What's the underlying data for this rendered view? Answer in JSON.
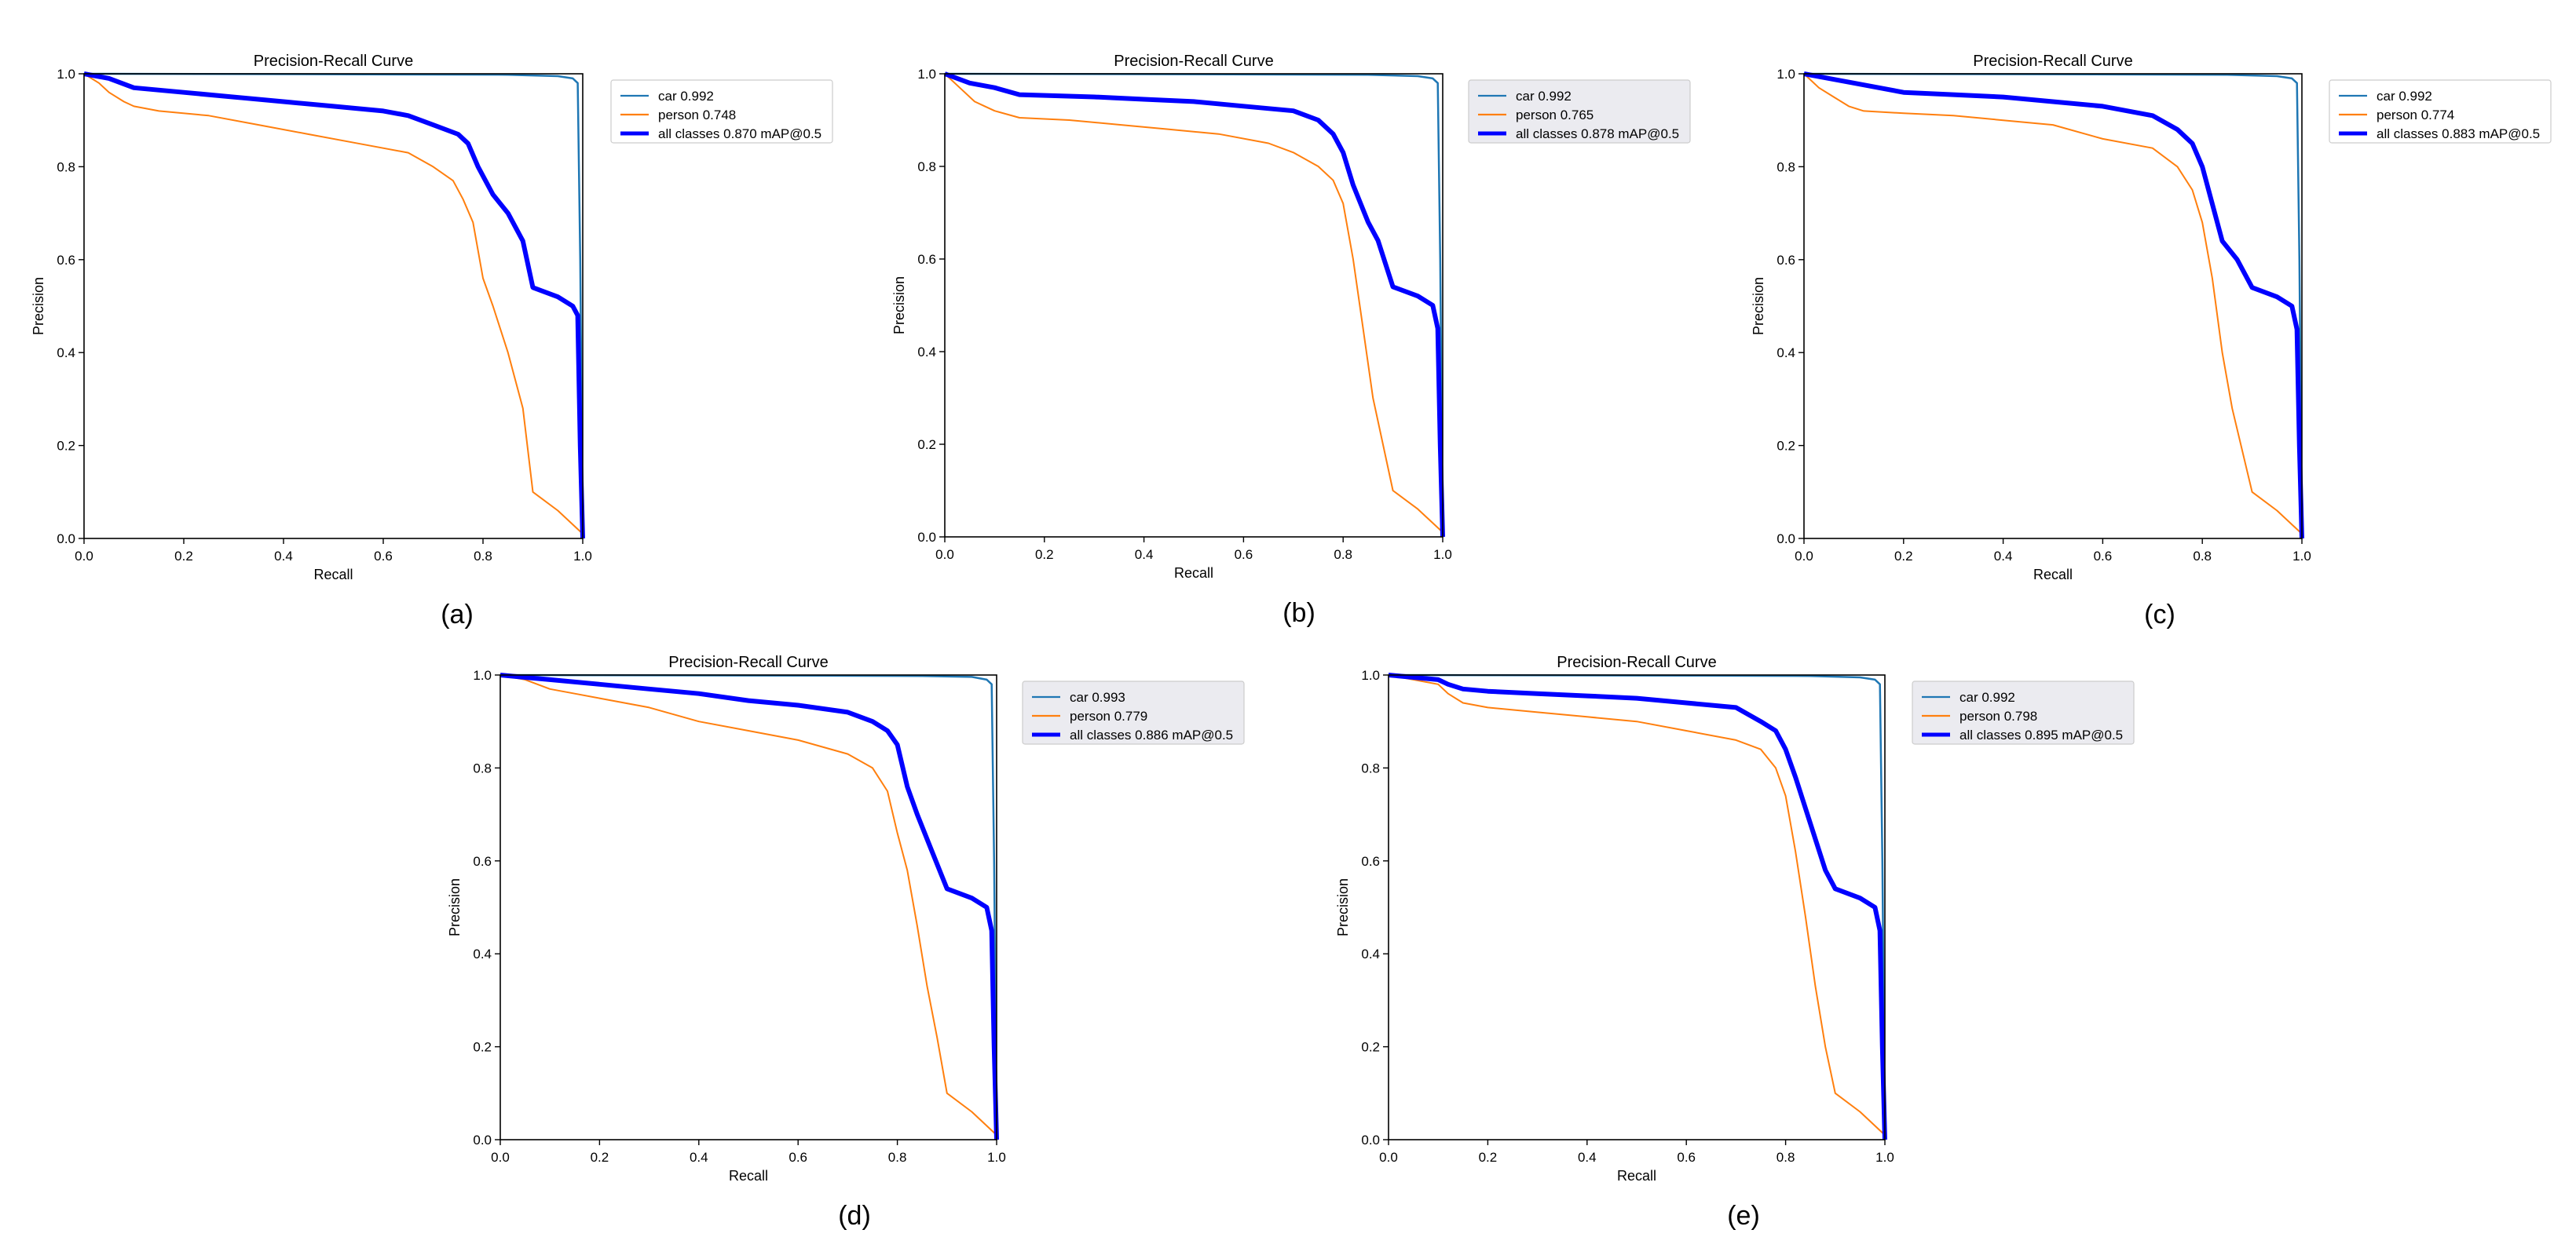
{
  "colors": {
    "car": "#1f77b4",
    "person": "#ff7f0e",
    "all": "#0000ff",
    "legend_bg_shaded": "#ebebf0",
    "legend_border": "#cccccc",
    "axis": "#000000"
  },
  "axis_tick_labels": [
    "0.0",
    "0.2",
    "0.4",
    "0.6",
    "0.8",
    "1.0"
  ],
  "chart_data": [
    {
      "type": "line",
      "panel_label": "(a)",
      "title": "Precision-Recall Curve",
      "xlabel": "Recall",
      "ylabel": "Precision",
      "xlim": [
        0,
        1
      ],
      "ylim": [
        0,
        1
      ],
      "legend_shaded": false,
      "series": [
        {
          "key": "car",
          "name": "car 0.992",
          "x": [
            0,
            0.5,
            0.85,
            0.95,
            0.98,
            0.99,
            0.995,
            1.0
          ],
          "y": [
            1.0,
            0.999,
            0.998,
            0.995,
            0.99,
            0.98,
            0.6,
            0.0
          ]
        },
        {
          "key": "person",
          "name": "person 0.748",
          "x": [
            0,
            0.03,
            0.05,
            0.08,
            0.1,
            0.15,
            0.25,
            0.35,
            0.45,
            0.55,
            0.65,
            0.7,
            0.74,
            0.76,
            0.78,
            0.8,
            0.82,
            0.85,
            0.88,
            0.9,
            0.95,
            1.0
          ],
          "y": [
            1.0,
            0.98,
            0.96,
            0.94,
            0.93,
            0.92,
            0.91,
            0.89,
            0.87,
            0.85,
            0.83,
            0.8,
            0.77,
            0.73,
            0.68,
            0.56,
            0.5,
            0.4,
            0.28,
            0.1,
            0.06,
            0.01
          ]
        },
        {
          "key": "all",
          "name": "all classes 0.870 mAP@0.5",
          "x": [
            0,
            0.05,
            0.1,
            0.2,
            0.3,
            0.4,
            0.5,
            0.6,
            0.65,
            0.7,
            0.75,
            0.77,
            0.79,
            0.82,
            0.85,
            0.88,
            0.9,
            0.95,
            0.98,
            0.99,
            0.995,
            1.0
          ],
          "y": [
            1.0,
            0.99,
            0.97,
            0.96,
            0.95,
            0.94,
            0.93,
            0.92,
            0.91,
            0.89,
            0.87,
            0.85,
            0.8,
            0.74,
            0.7,
            0.64,
            0.54,
            0.52,
            0.5,
            0.48,
            0.2,
            0.0
          ]
        }
      ]
    },
    {
      "type": "line",
      "panel_label": "(b)",
      "title": "Precision-Recall Curve",
      "xlabel": "Recall",
      "ylabel": "Precision",
      "xlim": [
        0,
        1
      ],
      "ylim": [
        0,
        1
      ],
      "legend_shaded": true,
      "series": [
        {
          "key": "car",
          "name": "car 0.992",
          "x": [
            0,
            0.5,
            0.85,
            0.95,
            0.98,
            0.99,
            0.995,
            1.0
          ],
          "y": [
            1.0,
            0.999,
            0.998,
            0.995,
            0.99,
            0.98,
            0.6,
            0.0
          ]
        },
        {
          "key": "person",
          "name": "person 0.765",
          "x": [
            0,
            0.03,
            0.06,
            0.08,
            0.1,
            0.15,
            0.25,
            0.35,
            0.45,
            0.55,
            0.65,
            0.7,
            0.75,
            0.78,
            0.8,
            0.82,
            0.84,
            0.86,
            0.9,
            0.95,
            1.0
          ],
          "y": [
            1.0,
            0.97,
            0.94,
            0.93,
            0.92,
            0.905,
            0.9,
            0.89,
            0.88,
            0.87,
            0.85,
            0.83,
            0.8,
            0.77,
            0.72,
            0.6,
            0.45,
            0.3,
            0.1,
            0.06,
            0.01
          ]
        },
        {
          "key": "all",
          "name": "all classes 0.878 mAP@0.5",
          "x": [
            0,
            0.05,
            0.1,
            0.15,
            0.3,
            0.4,
            0.5,
            0.6,
            0.7,
            0.75,
            0.78,
            0.8,
            0.82,
            0.85,
            0.87,
            0.9,
            0.95,
            0.98,
            0.99,
            0.995,
            1.0
          ],
          "y": [
            1.0,
            0.98,
            0.97,
            0.955,
            0.95,
            0.945,
            0.94,
            0.93,
            0.92,
            0.9,
            0.87,
            0.83,
            0.76,
            0.68,
            0.64,
            0.54,
            0.52,
            0.5,
            0.45,
            0.2,
            0.0
          ]
        }
      ]
    },
    {
      "type": "line",
      "panel_label": "(c)",
      "title": "Precision-Recall Curve",
      "xlabel": "Recall",
      "ylabel": "Precision",
      "xlim": [
        0,
        1
      ],
      "ylim": [
        0,
        1
      ],
      "legend_shaded": false,
      "series": [
        {
          "key": "car",
          "name": "car 0.992",
          "x": [
            0,
            0.5,
            0.85,
            0.95,
            0.98,
            0.99,
            0.995,
            1.0
          ],
          "y": [
            1.0,
            0.999,
            0.998,
            0.995,
            0.99,
            0.98,
            0.6,
            0.0
          ]
        },
        {
          "key": "person",
          "name": "person 0.774",
          "x": [
            0,
            0.03,
            0.06,
            0.09,
            0.12,
            0.2,
            0.3,
            0.4,
            0.5,
            0.6,
            0.7,
            0.75,
            0.78,
            0.8,
            0.82,
            0.84,
            0.86,
            0.9,
            0.95,
            1.0
          ],
          "y": [
            1.0,
            0.97,
            0.95,
            0.93,
            0.92,
            0.915,
            0.91,
            0.9,
            0.89,
            0.86,
            0.84,
            0.8,
            0.75,
            0.68,
            0.56,
            0.4,
            0.28,
            0.1,
            0.06,
            0.01
          ]
        },
        {
          "key": "all",
          "name": "all classes 0.883 mAP@0.5",
          "x": [
            0,
            0.05,
            0.1,
            0.2,
            0.3,
            0.4,
            0.5,
            0.6,
            0.7,
            0.75,
            0.78,
            0.8,
            0.82,
            0.84,
            0.87,
            0.9,
            0.95,
            0.98,
            0.99,
            0.995,
            1.0
          ],
          "y": [
            1.0,
            0.99,
            0.98,
            0.96,
            0.955,
            0.95,
            0.94,
            0.93,
            0.91,
            0.88,
            0.85,
            0.8,
            0.72,
            0.64,
            0.6,
            0.54,
            0.52,
            0.5,
            0.45,
            0.2,
            0.0
          ]
        }
      ]
    },
    {
      "type": "line",
      "panel_label": "(d)",
      "title": "Precision-Recall Curve",
      "xlabel": "Recall",
      "ylabel": "Precision",
      "xlim": [
        0,
        1
      ],
      "ylim": [
        0,
        1
      ],
      "legend_shaded": true,
      "series": [
        {
          "key": "car",
          "name": "car 0.993",
          "x": [
            0,
            0.5,
            0.85,
            0.95,
            0.98,
            0.99,
            0.995,
            1.0
          ],
          "y": [
            1.0,
            0.999,
            0.998,
            0.996,
            0.99,
            0.98,
            0.6,
            0.0
          ]
        },
        {
          "key": "person",
          "name": "person 0.779",
          "x": [
            0,
            0.05,
            0.1,
            0.15,
            0.2,
            0.3,
            0.4,
            0.5,
            0.6,
            0.7,
            0.75,
            0.78,
            0.8,
            0.82,
            0.84,
            0.86,
            0.88,
            0.9,
            0.95,
            1.0
          ],
          "y": [
            1.0,
            0.99,
            0.97,
            0.96,
            0.95,
            0.93,
            0.9,
            0.88,
            0.86,
            0.83,
            0.8,
            0.75,
            0.66,
            0.58,
            0.46,
            0.33,
            0.22,
            0.1,
            0.06,
            0.01
          ]
        },
        {
          "key": "all",
          "name": "all classes 0.886 mAP@0.5",
          "x": [
            0,
            0.05,
            0.1,
            0.2,
            0.3,
            0.4,
            0.5,
            0.6,
            0.7,
            0.75,
            0.78,
            0.8,
            0.82,
            0.84,
            0.87,
            0.9,
            0.95,
            0.98,
            0.99,
            0.995,
            1.0
          ],
          "y": [
            1.0,
            0.995,
            0.99,
            0.98,
            0.97,
            0.96,
            0.945,
            0.935,
            0.92,
            0.9,
            0.88,
            0.85,
            0.76,
            0.7,
            0.62,
            0.54,
            0.52,
            0.5,
            0.45,
            0.2,
            0.0
          ]
        }
      ]
    },
    {
      "type": "line",
      "panel_label": "(e)",
      "title": "Precision-Recall Curve",
      "xlabel": "Recall",
      "ylabel": "Precision",
      "xlim": [
        0,
        1
      ],
      "ylim": [
        0,
        1
      ],
      "legend_shaded": true,
      "series": [
        {
          "key": "car",
          "name": "car 0.992",
          "x": [
            0,
            0.5,
            0.85,
            0.95,
            0.98,
            0.99,
            0.995,
            1.0
          ],
          "y": [
            1.0,
            0.999,
            0.998,
            0.995,
            0.99,
            0.98,
            0.6,
            0.0
          ]
        },
        {
          "key": "person",
          "name": "person 0.798",
          "x": [
            0,
            0.05,
            0.1,
            0.12,
            0.15,
            0.2,
            0.3,
            0.4,
            0.5,
            0.6,
            0.7,
            0.75,
            0.78,
            0.8,
            0.82,
            0.84,
            0.86,
            0.88,
            0.9,
            0.95,
            1.0
          ],
          "y": [
            1.0,
            0.99,
            0.98,
            0.96,
            0.94,
            0.93,
            0.92,
            0.91,
            0.9,
            0.88,
            0.86,
            0.84,
            0.8,
            0.74,
            0.62,
            0.48,
            0.33,
            0.2,
            0.1,
            0.06,
            0.01
          ]
        },
        {
          "key": "all",
          "name": "all classes 0.895 mAP@0.5",
          "x": [
            0,
            0.1,
            0.12,
            0.15,
            0.2,
            0.3,
            0.4,
            0.5,
            0.6,
            0.7,
            0.75,
            0.78,
            0.8,
            0.82,
            0.85,
            0.88,
            0.9,
            0.95,
            0.98,
            0.99,
            0.995,
            1.0
          ],
          "y": [
            1.0,
            0.99,
            0.98,
            0.97,
            0.965,
            0.96,
            0.955,
            0.95,
            0.94,
            0.93,
            0.9,
            0.88,
            0.84,
            0.78,
            0.68,
            0.58,
            0.54,
            0.52,
            0.5,
            0.45,
            0.2,
            0.0
          ]
        }
      ]
    }
  ]
}
